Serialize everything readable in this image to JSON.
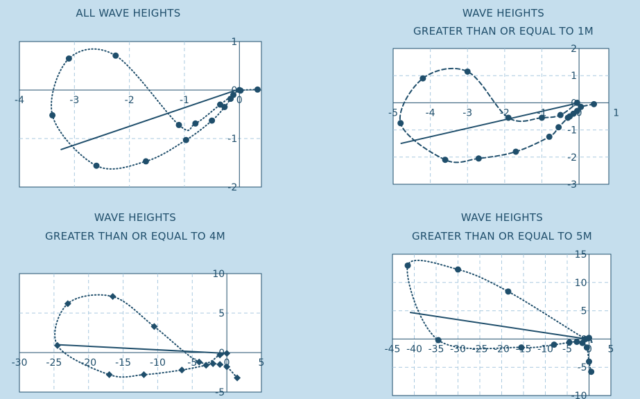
{
  "colors": {
    "background": "#c5deed",
    "plot_area": "#ffffff",
    "ink": "#1f4e6b",
    "grid": "#a9c9df"
  },
  "chart_data": [
    {
      "type": "scatter",
      "title": [
        "ALL WAVE HEIGHTS"
      ],
      "xlim": [
        -4,
        0.4
      ],
      "ylim": [
        -2,
        1
      ],
      "x_ticks": [
        -4,
        -3,
        -2,
        -1,
        0
      ],
      "y_ticks": [
        -2,
        -1,
        0,
        1
      ],
      "x_tick_labels": [
        "-4",
        "-3",
        "-2",
        "-1",
        "0"
      ],
      "y_tick_labels": [
        "-2",
        "-1",
        "0",
        "1"
      ],
      "marker": "circle",
      "grid": true,
      "series": [
        {
          "line_style": "dotted",
          "x": [
            0.33,
            0.02,
            -0.11,
            -0.16,
            -0.27,
            -0.5,
            -0.97,
            -1.7,
            -2.6,
            -3.4,
            -3.1,
            -2.25,
            -1.1,
            -0.8,
            -0.35,
            0.0
          ],
          "y": [
            0.01,
            -0.01,
            -0.1,
            -0.18,
            -0.35,
            -0.63,
            -1.03,
            -1.47,
            -1.56,
            -0.52,
            0.65,
            0.71,
            -0.72,
            -0.69,
            -0.3,
            0.0
          ]
        }
      ],
      "trend": {
        "x": [
          -3.25,
          0.0
        ],
        "y": [
          -1.23,
          0.02
        ]
      }
    },
    {
      "type": "scatter",
      "title": [
        "WAVE HEIGHTS",
        "GREATER THAN OR EQUAL TO 1M"
      ],
      "xlim": [
        -5,
        0.8
      ],
      "ylim": [
        -3,
        2
      ],
      "x_ticks": [
        -5,
        -4,
        -3,
        -2,
        -1,
        0,
        1
      ],
      "y_ticks": [
        -3,
        -2,
        -1,
        0,
        1,
        2
      ],
      "x_tick_labels": [
        "-5",
        "-4",
        "-3",
        "-2",
        "-1",
        "0",
        "1"
      ],
      "y_tick_labels": [
        "-3",
        "-2",
        "-1",
        "0",
        "1",
        "2"
      ],
      "marker": "circle",
      "grid": true,
      "series": [
        {
          "line_style": "dashed",
          "x": [
            0.4,
            0.05,
            -0.05,
            -0.15,
            -0.25,
            -0.3,
            -0.55,
            -0.8,
            -1.7,
            -2.7,
            -3.6,
            -4.8,
            -4.2,
            -3.0,
            -1.9,
            -1.0,
            -0.5,
            -0.05
          ],
          "y": [
            -0.05,
            -0.15,
            -0.3,
            -0.4,
            -0.5,
            -0.55,
            -0.9,
            -1.25,
            -1.8,
            -2.05,
            -2.1,
            -0.75,
            0.9,
            1.15,
            -0.55,
            -0.55,
            -0.45,
            0.0
          ]
        }
      ],
      "trend": {
        "x": [
          -4.8,
          0.0
        ],
        "y": [
          -1.5,
          0.0
        ]
      }
    },
    {
      "type": "scatter",
      "title": [
        "WAVE HEIGHTS",
        "GREATER THAN OR EQUAL TO 4M"
      ],
      "xlim": [
        -30,
        5
      ],
      "ylim": [
        -5,
        10
      ],
      "x_ticks": [
        -30,
        -25,
        -20,
        -15,
        -10,
        -5,
        0,
        5
      ],
      "y_ticks": [
        -5,
        0,
        5,
        10
      ],
      "x_tick_labels": [
        "-30",
        "-25",
        "-20",
        "-15",
        "-10",
        "-5",
        "0",
        "5"
      ],
      "y_tick_labels": [
        "-5",
        "0",
        "5",
        "10"
      ],
      "marker": "diamond",
      "grid": true,
      "series": [
        {
          "line_style": "dotted",
          "x": [
            1.5,
            0.0,
            -1.0,
            -2.0,
            -3.0,
            -6.5,
            -12.0,
            -17.0,
            -24.5,
            -23.0,
            -16.5,
            -10.5,
            -4.0,
            -1.0,
            0.0
          ],
          "y": [
            -3.2,
            -1.8,
            -1.5,
            -1.4,
            -1.6,
            -2.2,
            -2.8,
            -2.8,
            0.9,
            6.2,
            7.1,
            3.3,
            -1.2,
            -0.3,
            -0.1
          ]
        }
      ],
      "trend": {
        "x": [
          -24.5,
          0.0
        ],
        "y": [
          1.0,
          -0.1
        ]
      }
    },
    {
      "type": "scatter",
      "title": [
        "WAVE HEIGHTS",
        "GREATER THAN OR EQUAL TO 5M"
      ],
      "xlim": [
        -45,
        5
      ],
      "ylim": [
        -10,
        15
      ],
      "x_ticks": [
        -45,
        -40,
        -35,
        -30,
        -25,
        -20,
        -15,
        -10,
        -5,
        0,
        5
      ],
      "y_ticks": [
        -10,
        -5,
        0,
        5,
        10,
        15
      ],
      "x_tick_labels": [
        "-45",
        "-40",
        "-35",
        "-30",
        "-25",
        "-20",
        "-15",
        "-10",
        "-5",
        "0",
        "5"
      ],
      "y_tick_labels": [
        "-10",
        "-5",
        "0",
        "5",
        "10",
        "15"
      ],
      "marker": "circle",
      "grid": true,
      "series": [
        {
          "line_style": "dotted",
          "x": [
            0.5,
            0.0,
            -0.5,
            -1.5,
            -2.8,
            -4.5,
            -8.0,
            -15.5,
            -34.5,
            -41.5,
            -30.0,
            -18.5,
            -0.8,
            0.0
          ],
          "y": [
            -5.8,
            -4.0,
            -1.5,
            -0.7,
            -0.5,
            -0.6,
            -1.0,
            -1.5,
            -0.2,
            13.0,
            12.3,
            8.4,
            0.0,
            0.2
          ]
        }
      ],
      "trend": {
        "x": [
          -41.0,
          -0.5
        ],
        "y": [
          4.7,
          0.0
        ]
      }
    }
  ]
}
